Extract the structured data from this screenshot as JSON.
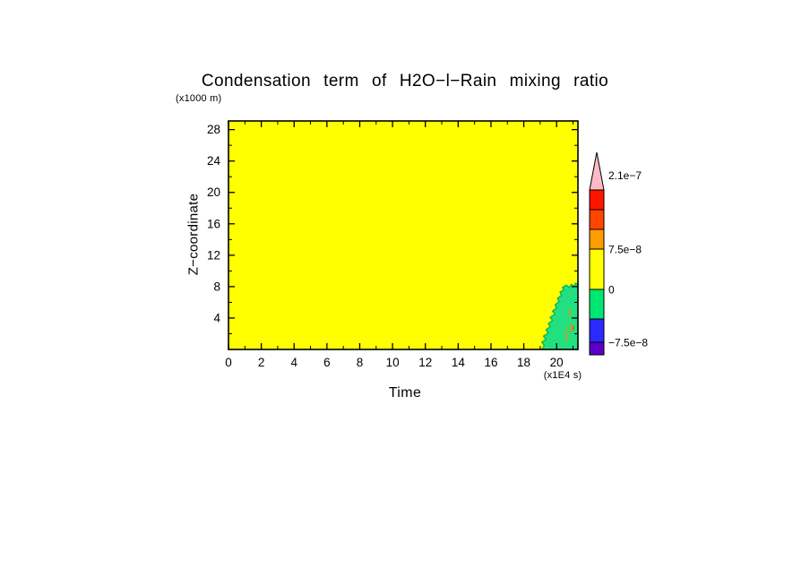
{
  "chart_data": {
    "type": "heatmap",
    "title": "Condensation term of H2O−l−Rain mixing ratio",
    "xlabel": "Time",
    "x_unit_label": "(x1E4 s)",
    "ylabel": "Z−coordinate",
    "y_unit_label": "(x1000 m)",
    "xlim": [
      0,
      21.3
    ],
    "ylim": [
      0,
      29.1
    ],
    "x_ticks": [
      0,
      2,
      4,
      6,
      8,
      10,
      12,
      14,
      16,
      18,
      20
    ],
    "y_ticks": [
      4,
      8,
      12,
      16,
      20,
      24,
      28
    ],
    "grid": false,
    "background_value_band": "0",
    "background_color": "#FFFF00",
    "regions": [
      {
        "name": "negative-band-region",
        "value_band": "−7.5e−8 to 0",
        "color": "#22E081",
        "stroke": "#00B050",
        "points": [
          [
            19.1,
            0.0
          ],
          [
            19.25,
            0.5
          ],
          [
            19.1,
            0.9
          ],
          [
            19.35,
            1.3
          ],
          [
            19.2,
            1.7
          ],
          [
            19.5,
            2.1
          ],
          [
            19.35,
            2.5
          ],
          [
            19.6,
            2.9
          ],
          [
            19.5,
            3.3
          ],
          [
            19.75,
            3.7
          ],
          [
            19.6,
            4.1
          ],
          [
            19.9,
            4.5
          ],
          [
            19.75,
            4.9
          ],
          [
            20.0,
            5.3
          ],
          [
            19.9,
            5.7
          ],
          [
            20.15,
            6.1
          ],
          [
            20.05,
            6.5
          ],
          [
            20.3,
            6.9
          ],
          [
            20.2,
            7.3
          ],
          [
            20.45,
            7.6
          ],
          [
            20.35,
            7.9
          ],
          [
            20.6,
            8.2
          ],
          [
            20.75,
            7.9
          ],
          [
            20.9,
            8.3
          ],
          [
            21.05,
            8.0
          ],
          [
            21.15,
            8.45
          ],
          [
            21.3,
            8.3
          ],
          [
            21.3,
            0.0
          ]
        ]
      }
    ],
    "speckles": [
      {
        "name": "positive-speck",
        "value_band": "0 to 7.5e−8",
        "color": "#FF8800",
        "points": [
          [
            20.55,
            1.0
          ],
          [
            20.65,
            1.6
          ],
          [
            20.55,
            2.2
          ],
          [
            20.7,
            2.8
          ]
        ]
      },
      {
        "name": "positive-speck",
        "value_band": "0 to 7.5e−8",
        "color": "#FF8800",
        "points": [
          [
            20.85,
            2.2
          ],
          [
            20.95,
            2.8
          ],
          [
            20.85,
            3.4
          ]
        ]
      },
      {
        "name": "positive-speck",
        "value_band": "0 to 7.5e−8",
        "color": "#FF8800",
        "points": [
          [
            20.7,
            4.2
          ],
          [
            20.85,
            4.7
          ],
          [
            20.75,
            5.2
          ]
        ]
      },
      {
        "name": "positive-speck",
        "value_band": "7.5e−8 to 1.5e−7",
        "color": "#FF4400",
        "points": [
          [
            21.0,
            2.5
          ],
          [
            21.05,
            3.0
          ]
        ]
      }
    ],
    "colorbar": {
      "pennant": {
        "color": "#FFB9C6",
        "label": "2.1e−7"
      },
      "segments": [
        {
          "color": "#FF1400"
        },
        {
          "color": "#FF4500"
        },
        {
          "color": "#FF9C00"
        },
        {
          "color": "#FFFF00",
          "label_top": "7.5e−8"
        },
        {
          "color": "#00E673",
          "label_top": "0"
        },
        {
          "color": "#2A2AFF"
        },
        {
          "color": "#5A00C8",
          "label_top": "−7.5e−8"
        }
      ]
    }
  }
}
